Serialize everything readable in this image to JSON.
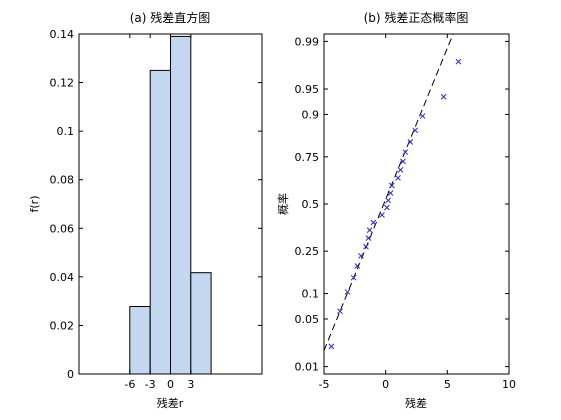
{
  "chart_data": [
    {
      "type": "bar",
      "title": "(a) 残差直方图",
      "xlabel": "残差r",
      "ylabel": "f(r)",
      "xlim": [
        -13.5,
        13.5
      ],
      "ylim": [
        0,
        0.14
      ],
      "xticks": [
        -6,
        -3,
        0,
        3
      ],
      "xtick_labels": [
        "-6",
        "-3",
        "0",
        "3"
      ],
      "yticks": [
        0,
        0.02,
        0.04,
        0.06,
        0.08,
        0.1,
        0.12,
        0.14
      ],
      "ytick_labels": [
        "0",
        "0.02",
        "0.04",
        "0.06",
        "0.08",
        "0.1",
        "0.12",
        "0.14"
      ],
      "bins": [
        {
          "x0": -6,
          "x1": -3,
          "value": 0.0278
        },
        {
          "x0": -3,
          "x1": 0,
          "value": 0.125
        },
        {
          "x0": 0,
          "x1": 3,
          "value": 0.139
        },
        {
          "x0": 3,
          "x1": 6,
          "value": 0.0417
        }
      ]
    },
    {
      "type": "scatter",
      "title": "(b) 残差正态概率图",
      "xlabel": "残差",
      "ylabel": "概率",
      "xlim": [
        -5,
        10
      ],
      "xticks": [
        -5,
        0,
        5,
        10
      ],
      "xtick_labels": [
        "-5",
        "0",
        "5",
        "10"
      ],
      "yscale": "normal-probability",
      "ylim": [
        0.0075,
        0.9925
      ],
      "yticks": [
        0.01,
        0.05,
        0.1,
        0.25,
        0.5,
        0.75,
        0.9,
        0.95,
        0.99
      ],
      "ytick_labels": [
        "0.01",
        "0.05",
        "0.1",
        "0.25",
        "0.5",
        "0.75",
        "0.9",
        "0.95",
        "0.99"
      ],
      "points": [
        {
          "x": -4.4,
          "p": 0.0208
        },
        {
          "x": -3.7,
          "p": 0.0625
        },
        {
          "x": -3.1,
          "p": 0.1042
        },
        {
          "x": -2.6,
          "p": 0.1458
        },
        {
          "x": -2.3,
          "p": 0.1875
        },
        {
          "x": -2.0,
          "p": 0.2292
        },
        {
          "x": -1.6,
          "p": 0.2708
        },
        {
          "x": -1.4,
          "p": 0.3125
        },
        {
          "x": -1.3,
          "p": 0.3542
        },
        {
          "x": -1.0,
          "p": 0.3958
        },
        {
          "x": -0.3,
          "p": 0.4375
        },
        {
          "x": 0.1,
          "p": 0.4792
        },
        {
          "x": 0.2,
          "p": 0.5208
        },
        {
          "x": 0.4,
          "p": 0.5625
        },
        {
          "x": 0.5,
          "p": 0.6042
        },
        {
          "x": 1.0,
          "p": 0.6458
        },
        {
          "x": 1.2,
          "p": 0.6875
        },
        {
          "x": 1.4,
          "p": 0.7292
        },
        {
          "x": 1.6,
          "p": 0.7708
        },
        {
          "x": 2.0,
          "p": 0.8125
        },
        {
          "x": 2.4,
          "p": 0.8542
        },
        {
          "x": 3.0,
          "p": 0.8958
        },
        {
          "x": 4.7,
          "p": 0.9375
        },
        {
          "x": 5.9,
          "p": 0.9792
        }
      ],
      "fit_line": {
        "x": [
          -5,
          5.8
        ],
        "p": [
          0.018,
          0.995
        ]
      }
    }
  ]
}
